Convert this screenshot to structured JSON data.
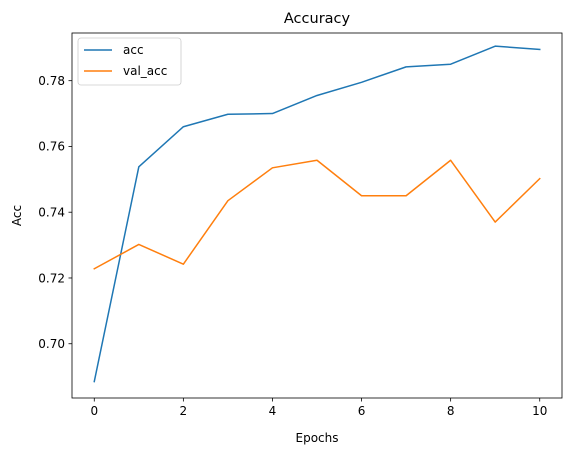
{
  "chart_data": {
    "type": "line",
    "title": "Accuracy",
    "xlabel": "Epochs",
    "ylabel": "Acc",
    "x": [
      0,
      1,
      2,
      3,
      4,
      5,
      6,
      7,
      8,
      9,
      10
    ],
    "xlim": [
      -0.5,
      10.5
    ],
    "ylim": [
      0.6835,
      0.7945
    ],
    "xticks": [
      0,
      2,
      4,
      6,
      8,
      10
    ],
    "xtick_labels": [
      "0",
      "2",
      "4",
      "6",
      "8",
      "10"
    ],
    "yticks": [
      0.7,
      0.72,
      0.74,
      0.76,
      0.78
    ],
    "ytick_labels": [
      "0.70",
      "0.72",
      "0.74",
      "0.76",
      "0.78"
    ],
    "grid": false,
    "legend_position": "top-left",
    "series": [
      {
        "name": "acc",
        "color": "#1f77b4",
        "values": [
          0.6885,
          0.7538,
          0.766,
          0.7698,
          0.77,
          0.7755,
          0.7795,
          0.7842,
          0.785,
          0.7905,
          0.7895
        ]
      },
      {
        "name": "val_acc",
        "color": "#ff7f0e",
        "values": [
          0.7228,
          0.7302,
          0.7242,
          0.7435,
          0.7535,
          0.7558,
          0.745,
          0.745,
          0.7558,
          0.737,
          0.7502
        ]
      }
    ]
  }
}
